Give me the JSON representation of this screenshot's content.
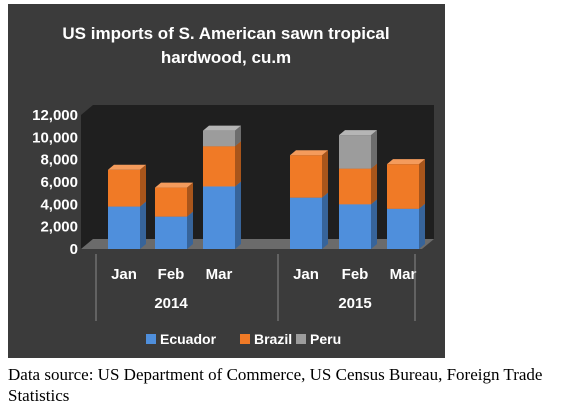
{
  "chart_data": {
    "type": "bar",
    "stacked": true,
    "three_d": true,
    "title_lines": [
      "US imports of S. American sawn tropical",
      "hardwood, cu.m"
    ],
    "groups": [
      {
        "label": "2014",
        "categories": [
          "Jan",
          "Feb",
          "Mar"
        ]
      },
      {
        "label": "2015",
        "categories": [
          "Jan",
          "Feb",
          "Mar"
        ]
      }
    ],
    "series": [
      {
        "name": "Ecuador",
        "color": "#4f8fdc",
        "values": [
          3800,
          2900,
          5600,
          4600,
          4000,
          3600
        ]
      },
      {
        "name": "Brazil",
        "color": "#f07a26",
        "values": [
          3300,
          2600,
          3600,
          3800,
          3200,
          4000
        ]
      },
      {
        "name": "Peru",
        "color": "#9c9c9c",
        "values": [
          0,
          0,
          1400,
          0,
          3000,
          0
        ]
      }
    ],
    "ylim": [
      0,
      12000
    ],
    "yticks": [
      "0",
      "2,000",
      "4,000",
      "6,000",
      "8,000",
      "10,000",
      "12,000"
    ],
    "grid": false,
    "legend_position": "bottom"
  },
  "source_note": "Data source: US Department of Commerce, US Census Bureau, Foreign Trade Statistics"
}
